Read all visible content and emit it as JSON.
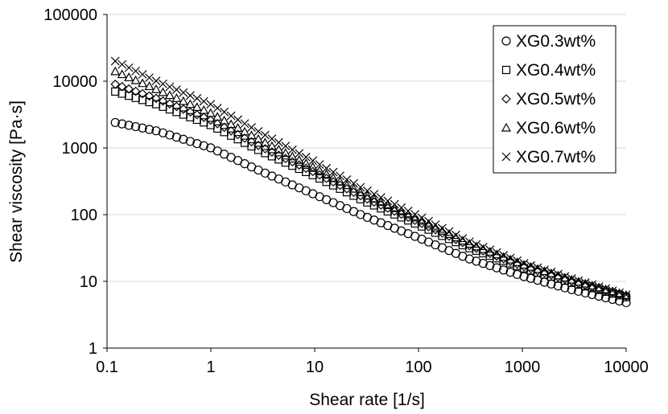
{
  "chart_data": {
    "type": "scatter",
    "title": "",
    "xlabel": "Shear rate [1/s]",
    "ylabel": "Shear viscosity [Pa·s]",
    "xscale": "log",
    "yscale": "log",
    "xlim": [
      0.1,
      10000
    ],
    "ylim": [
      1,
      100000
    ],
    "xticks": [
      0.1,
      1,
      10,
      100,
      1000,
      10000
    ],
    "xtick_labels": [
      "0.1",
      "1",
      "10",
      "100",
      "1000",
      "10000"
    ],
    "yticks": [
      1,
      10,
      100,
      1000,
      10000,
      100000
    ],
    "ytick_labels": [
      "1",
      "10",
      "100",
      "1000",
      "10000",
      "100000"
    ],
    "grid": "horizontal",
    "legend_position": "top-right",
    "series": [
      {
        "name": "XG0.3wt%",
        "marker": "circle",
        "x": [
          0.12,
          0.3,
          1,
          3,
          10,
          30,
          100,
          300,
          1000,
          3000,
          10000
        ],
        "y": [
          2400,
          1800,
          1000,
          450,
          200,
          95,
          45,
          22,
          12,
          7.5,
          4.8
        ]
      },
      {
        "name": "XG0.4wt%",
        "marker": "square",
        "x": [
          0.12,
          0.3,
          1,
          3,
          10,
          30,
          100,
          300,
          1000,
          3000,
          10000
        ],
        "y": [
          7000,
          4500,
          2200,
          900,
          380,
          160,
          70,
          32,
          16,
          9.5,
          5.8
        ]
      },
      {
        "name": "XG0.5wt%",
        "marker": "diamond",
        "x": [
          0.12,
          0.3,
          1,
          3,
          10,
          30,
          100,
          300,
          1000,
          3000,
          10000
        ],
        "y": [
          9000,
          5500,
          2600,
          1050,
          430,
          180,
          78,
          35,
          17,
          10,
          6
        ]
      },
      {
        "name": "XG0.6wt%",
        "marker": "triangle",
        "x": [
          0.12,
          0.3,
          1,
          3,
          10,
          30,
          100,
          300,
          1000,
          3000,
          10000
        ],
        "y": [
          14000,
          7500,
          3300,
          1300,
          500,
          200,
          85,
          37,
          18,
          10.5,
          6.2
        ]
      },
      {
        "name": "XG0.7wt%",
        "marker": "x",
        "x": [
          0.12,
          0.3,
          1,
          3,
          10,
          30,
          100,
          300,
          1000,
          3000,
          10000
        ],
        "y": [
          20000,
          10000,
          4500,
          1700,
          620,
          240,
          95,
          40,
          19,
          11,
          6.3
        ]
      }
    ]
  }
}
